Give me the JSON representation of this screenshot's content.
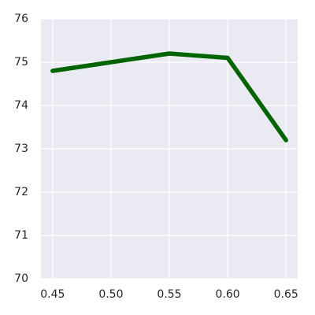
{
  "chart_data": {
    "type": "line",
    "x": [
      0.45,
      0.5,
      0.55,
      0.6,
      0.65
    ],
    "series": [
      {
        "color": "#006400",
        "values": [
          74.8,
          75.0,
          75.2,
          75.1,
          73.2
        ]
      }
    ],
    "xlim": [
      0.44,
      0.66
    ],
    "xticks": [
      0.45,
      {
        "value": 0.5,
        "label": "0.50"
      },
      0.55,
      {
        "value": 0.6,
        "label": "0.60"
      },
      0.65
    ],
    "ylim": [
      70,
      76
    ],
    "yticks": [
      70,
      71,
      72,
      73,
      74,
      75,
      76
    ],
    "grid": true
  }
}
